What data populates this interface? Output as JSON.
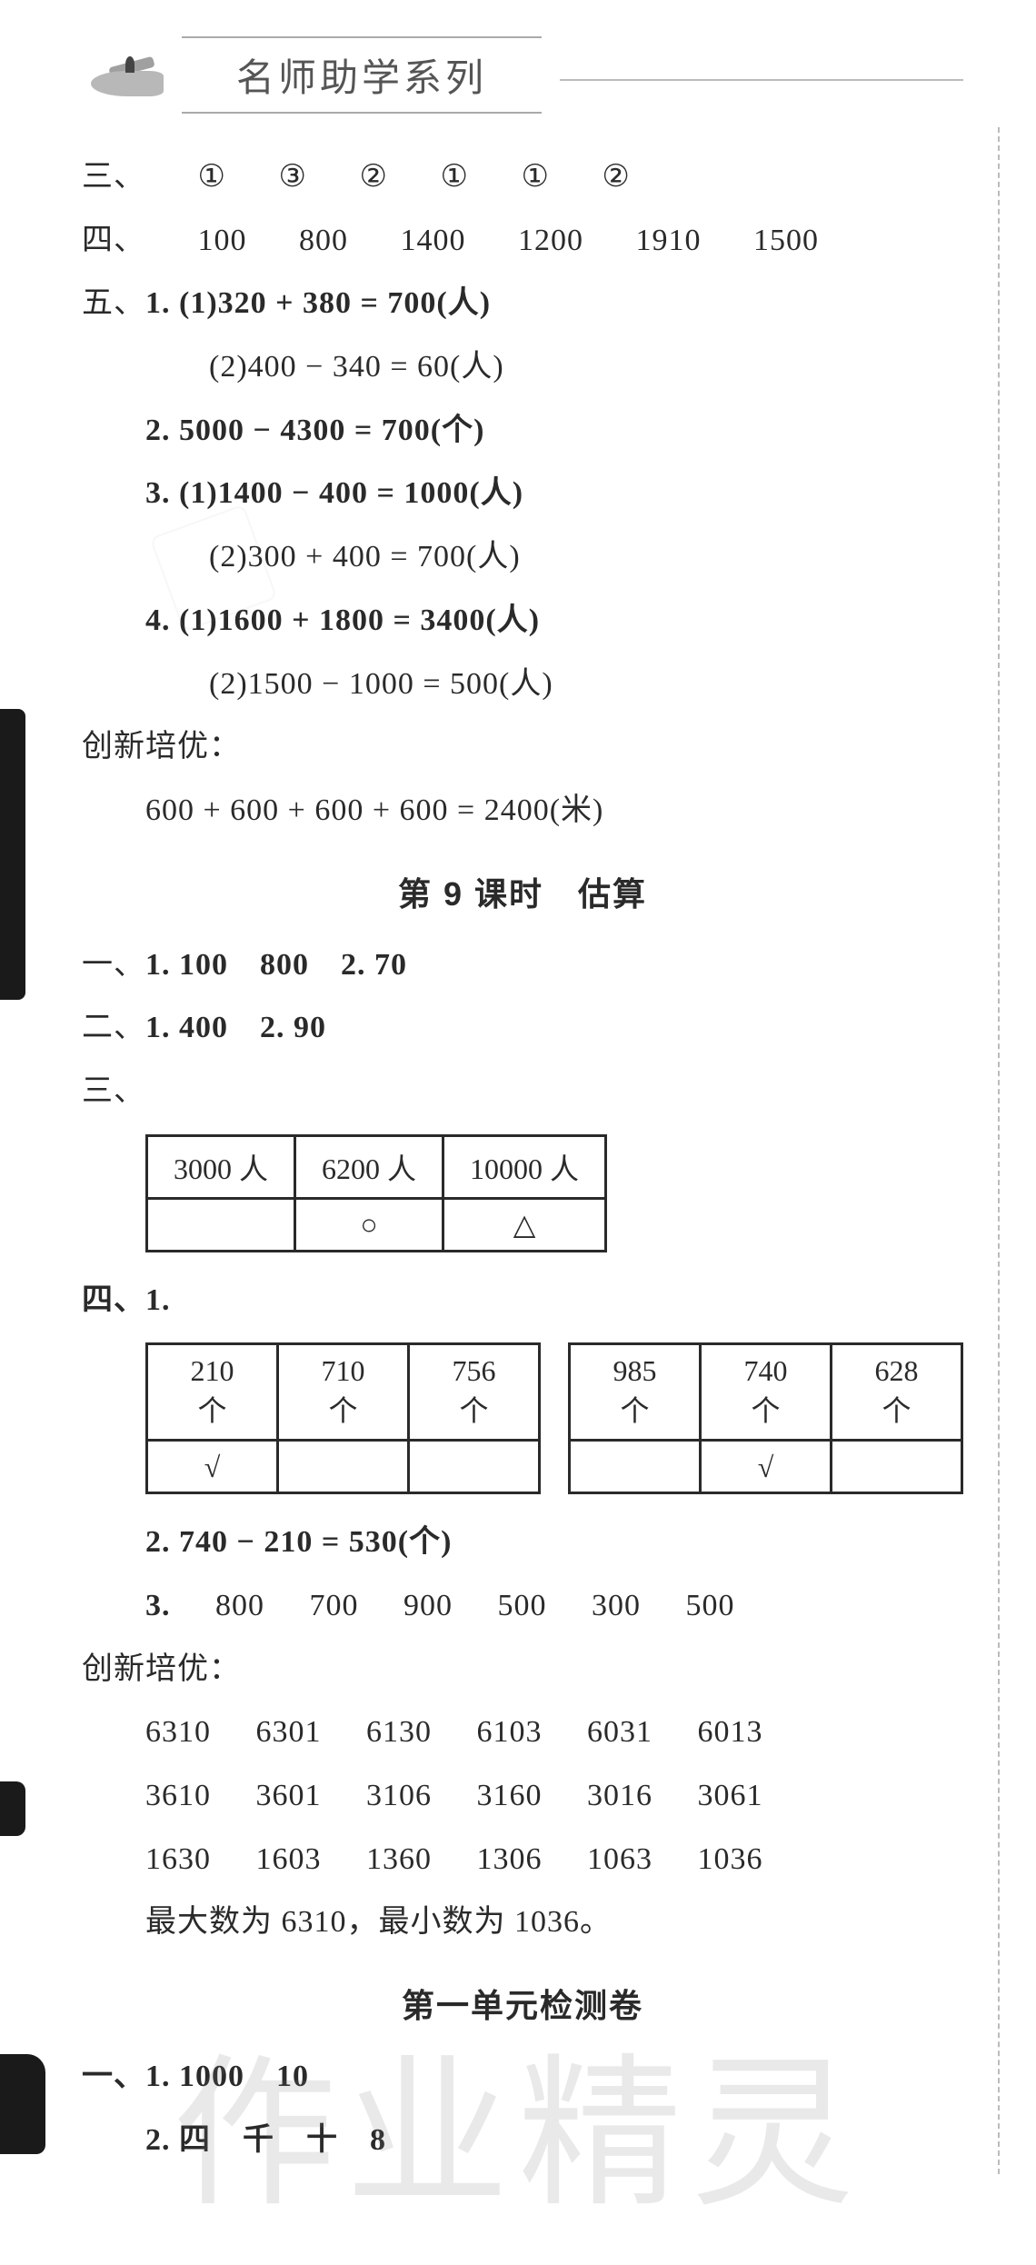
{
  "banner_title": "名师助学系列",
  "section3": {
    "label": "三、",
    "answers": [
      "①",
      "③",
      "②",
      "①",
      "①",
      "②"
    ]
  },
  "section4": {
    "label": "四、",
    "answers": [
      "100",
      "800",
      "1400",
      "1200",
      "1910",
      "1500"
    ]
  },
  "section5": {
    "label": "五、",
    "q1_1": "1. (1)320 + 380 = 700(人)",
    "q1_2": "(2)400 − 340 = 60(人)",
    "q2": "2. 5000 − 4300 = 700(个)",
    "q3_1": "3. (1)1400 − 400 = 1000(人)",
    "q3_2": "(2)300 + 400 = 700(人)",
    "q4_1": "4. (1)1600 + 1800 = 3400(人)",
    "q4_2": "(2)1500 − 1000 = 500(人)"
  },
  "cxpy1": {
    "label": "创新培优：",
    "line": "600 + 600 + 600 + 600 = 2400(米)"
  },
  "lesson9_title": "第 9 课时　估算",
  "l9_s1": {
    "label": "一、",
    "a": "1. 100　800",
    "b": "2. 70"
  },
  "l9_s2": {
    "label": "二、",
    "a": "1. 400",
    "b": "2. 90"
  },
  "l9_s3_label": "三、",
  "table3": {
    "headers": [
      "3000 人",
      "6200 人",
      "10000 人"
    ],
    "marks": [
      "",
      "○",
      "△"
    ]
  },
  "l9_s4_label": "四、1.",
  "table4a": {
    "headers": [
      "210 个",
      "710 个",
      "756 个"
    ],
    "marks": [
      "√",
      "",
      ""
    ]
  },
  "table4b": {
    "headers": [
      "985 个",
      "740 个",
      "628 个"
    ],
    "marks": [
      "",
      "√",
      ""
    ]
  },
  "l9_s4_q2": "2. 740 − 210 = 530(个)",
  "l9_s4_q3": {
    "label": "3.",
    "values": [
      "800",
      "700",
      "900",
      "500",
      "300",
      "500"
    ]
  },
  "cxpy2_label": "创新培优：",
  "num_grid": {
    "r1": [
      "6310",
      "6301",
      "6130",
      "6103",
      "6031",
      "6013"
    ],
    "r2": [
      "3610",
      "3601",
      "3106",
      "3160",
      "3016",
      "3061"
    ],
    "r3": [
      "1630",
      "1603",
      "1360",
      "1306",
      "1063",
      "1036"
    ]
  },
  "minmax_line": "最大数为 6310，最小数为 1036。",
  "unit_test_title": "第一单元检测卷",
  "ut_s1_1": "一、1. 1000　10",
  "ut_s1_2": "2. 四　千　十　8",
  "watermark_main": "作业精灵",
  "watermark_sub": "业精"
}
